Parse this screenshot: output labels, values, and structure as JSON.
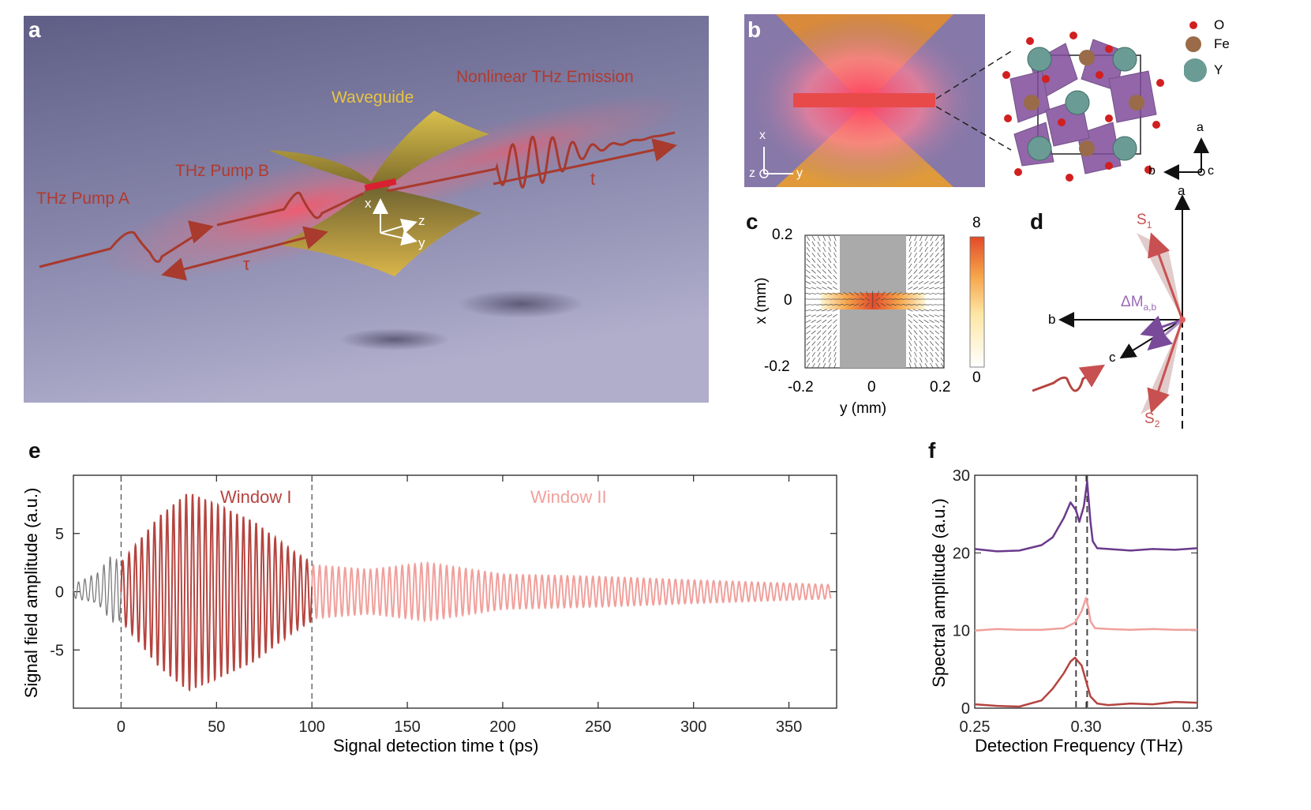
{
  "panel_letters": {
    "a": "a",
    "b": "b",
    "c": "c",
    "d": "d",
    "e": "e",
    "f": "f"
  },
  "panel_a": {
    "waveguide": "Waveguide",
    "emission": "Nonlinear THz Emission",
    "pump_a": "THz Pump A",
    "pump_b": "THz Pump B",
    "tau": "τ",
    "t": "t",
    "axis_x": "x",
    "axis_y": "y",
    "axis_z": "z",
    "colors": {
      "bg_top": "#6e6d95",
      "bg_bottom": "#a8a6c6",
      "label_red": "#b13a2f",
      "waveguide": "#e6c443"
    }
  },
  "panel_b": {
    "axis_x": "x",
    "axis_z": "z",
    "axis_y": "y",
    "legend": [
      {
        "symbol": "O",
        "color": "#d21f1f"
      },
      {
        "symbol": "Fe",
        "color": "#9a6b49"
      },
      {
        "symbol": "Y",
        "color": "#6b9b95"
      }
    ],
    "axes": {
      "a": "a",
      "b": "b",
      "c": "c"
    }
  },
  "panel_c": {
    "xlabel": "y (mm)",
    "ylabel": "x (mm)",
    "x_ticks": [
      "-0.2",
      "0",
      "0.2"
    ],
    "y_ticks": [
      "0.2",
      "0",
      "-0.2"
    ],
    "colorbar_max": "8",
    "colorbar_min": "0"
  },
  "panel_d": {
    "s1": "S",
    "s1_sub": "1",
    "s2": "S",
    "s2_sub": "2",
    "dm": "ΔM",
    "dm_sub": "a,b",
    "axis_a": "a",
    "axis_b": "b",
    "axis_c": "c"
  },
  "panel_e": {
    "xlabel": "Signal detection time t (ps)",
    "ylabel": "Signal field amplitude (a.u.)",
    "window1": "Window I",
    "window2": "Window II",
    "x_ticks": [
      "0",
      "50",
      "100",
      "150",
      "200",
      "250",
      "300",
      "350"
    ],
    "y_ticks": [
      "5",
      "0",
      "-5"
    ]
  },
  "panel_f": {
    "xlabel": "Detection Frequency (THz)",
    "ylabel": "Spectral amplitude (a.u.)",
    "x_ticks": [
      "0.25",
      "0.30",
      "0.35"
    ],
    "y_ticks": [
      "30",
      "20",
      "10",
      "0"
    ]
  },
  "chart_data": [
    {
      "type": "line",
      "panel": "e",
      "xlabel": "Signal detection time t (ps)",
      "ylabel": "Signal field amplitude (a.u.)",
      "xlim": [
        -25,
        375
      ],
      "ylim": [
        -10,
        10
      ],
      "series": [
        {
          "name": "",
          "color": "#7a7a7a",
          "t_range": [
            -25,
            0
          ],
          "period_ps": 3.3,
          "envelope": [
            [
              -25,
              0.6
            ],
            [
              -12,
              1.5
            ],
            [
              -5,
              3
            ],
            [
              0,
              2.5
            ]
          ]
        },
        {
          "name": "Window I",
          "color": "#b5443f",
          "t_range": [
            0,
            100
          ],
          "period_ps": 3.33,
          "envelope": [
            [
              0,
              2.5
            ],
            [
              10,
              4.5
            ],
            [
              20,
              6.5
            ],
            [
              35,
              8.5
            ],
            [
              50,
              7.5
            ],
            [
              70,
              6
            ],
            [
              90,
              3.5
            ],
            [
              100,
              2.5
            ]
          ]
        },
        {
          "name": "Window II",
          "color": "#f0a09c",
          "t_range": [
            100,
            372
          ],
          "period_ps": 3.33,
          "envelope": [
            [
              100,
              2.3
            ],
            [
              130,
              1.9
            ],
            [
              160,
              2.5
            ],
            [
              200,
              1.5
            ],
            [
              250,
              1.3
            ],
            [
              300,
              1.0
            ],
            [
              372,
              0.6
            ]
          ]
        }
      ],
      "vlines": [
        0,
        100
      ]
    },
    {
      "type": "line",
      "panel": "f",
      "xlabel": "Detection Frequency (THz)",
      "ylabel": "Spectral amplitude (a.u.)",
      "xlim": [
        0.25,
        0.35
      ],
      "ylim": [
        0,
        30
      ],
      "series": [
        {
          "name": "",
          "color": "#6b3a8c",
          "x": [
            0.25,
            0.26,
            0.27,
            0.28,
            0.285,
            0.29,
            0.293,
            0.2955,
            0.297,
            0.299,
            0.3005,
            0.302,
            0.303,
            0.305,
            0.31,
            0.32,
            0.33,
            0.34,
            0.35
          ],
          "y": [
            20.5,
            20.2,
            20.3,
            21.0,
            22.0,
            24.5,
            26.5,
            25.5,
            24.0,
            26.0,
            29.2,
            24.0,
            21.5,
            20.6,
            20.5,
            20.3,
            20.5,
            20.4,
            20.6
          ]
        },
        {
          "name": "",
          "color": "#f0a09c",
          "x": [
            0.25,
            0.26,
            0.27,
            0.28,
            0.29,
            0.295,
            0.298,
            0.3,
            0.301,
            0.302,
            0.304,
            0.31,
            0.32,
            0.33,
            0.34,
            0.35
          ],
          "y": [
            10.0,
            10.2,
            10.1,
            10.1,
            10.3,
            11.0,
            12.5,
            14.2,
            13.0,
            11.2,
            10.3,
            10.2,
            10.1,
            10.2,
            10.1,
            10.1
          ]
        },
        {
          "name": "",
          "color": "#b5443f",
          "x": [
            0.25,
            0.26,
            0.27,
            0.28,
            0.285,
            0.29,
            0.293,
            0.295,
            0.298,
            0.3,
            0.302,
            0.305,
            0.31,
            0.32,
            0.33,
            0.34,
            0.35
          ],
          "y": [
            0.5,
            0.3,
            0.2,
            1.0,
            2.5,
            4.5,
            6.0,
            6.5,
            5.5,
            3.5,
            1.5,
            0.6,
            0.4,
            0.6,
            0.5,
            0.8,
            0.7
          ]
        }
      ],
      "vlines": [
        0.2955,
        0.3005
      ]
    },
    {
      "type": "heatmap",
      "panel": "c",
      "xlabel": "y (mm)",
      "ylabel": "x (mm)",
      "xlim": [
        -0.2,
        0.2
      ],
      "ylim": [
        -0.2,
        0.2
      ],
      "colorbar_range": [
        0,
        8
      ]
    }
  ]
}
